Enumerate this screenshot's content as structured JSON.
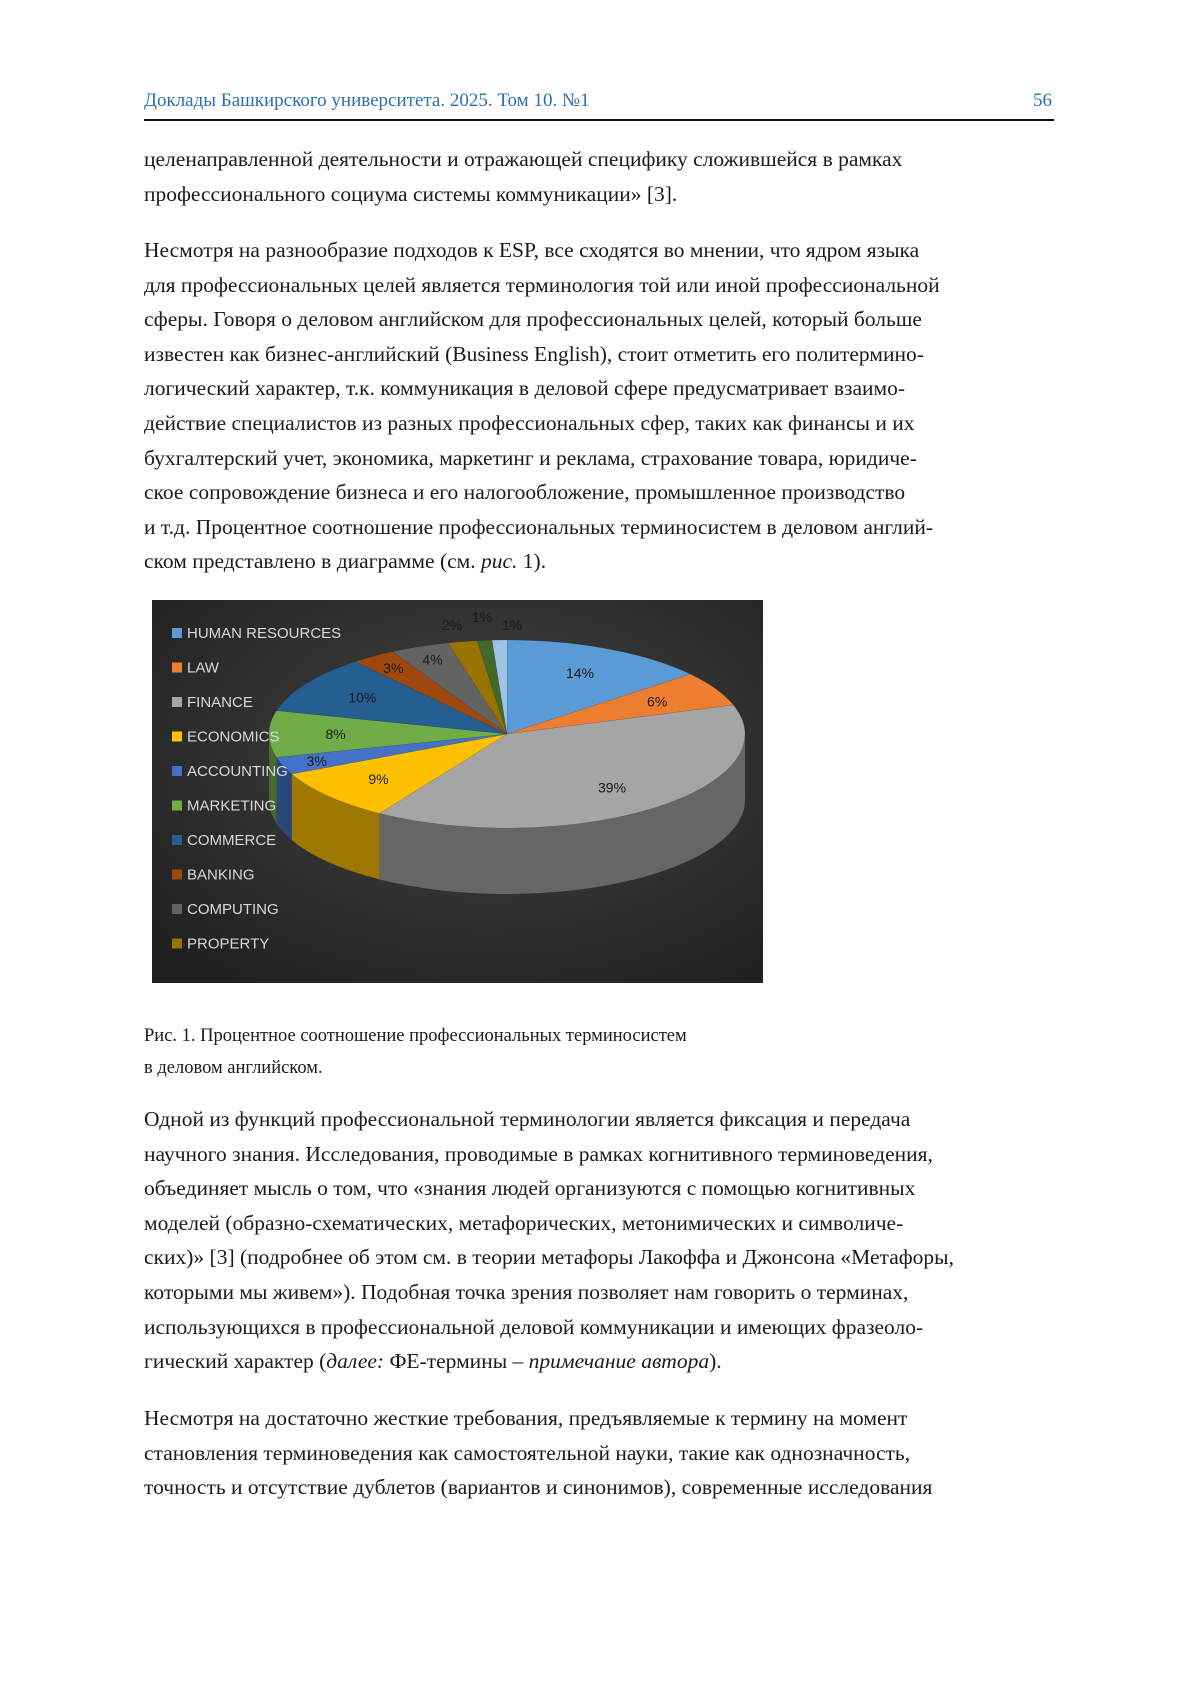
{
  "header": {
    "journal": "Доклады Башкирского университета. 2025. Том 10. №1",
    "page_number": "56"
  },
  "paragraphs": [
    {
      "lines": [
        [
          {
            "t": "целенаправленной деятельности и отражающей специфику сложившейся в рамках"
          }
        ],
        [
          {
            "t": "профессионального социума системы коммуникации» [3]."
          }
        ]
      ]
    },
    {
      "lines": [
        [
          {
            "t": "Несмотря на разнообразие подходов к ESP, все сходятся во мнении, что ядром языка"
          }
        ],
        [
          {
            "t": "для профессиональных целей является терминология той или иной профессиональной"
          }
        ],
        [
          {
            "t": "сферы. Говоря о деловом английском для профессиональных целей, который больше"
          }
        ],
        [
          {
            "t": "известен как бизнес-английский (Business English), стоит отметить его политермино-"
          }
        ],
        [
          {
            "t": "логический характер, т.к. коммуникация в деловой сфере предусматривает взаимо-"
          }
        ],
        [
          {
            "t": "действие специалистов из разных профессиональных сфер, таких как финансы и их"
          }
        ],
        [
          {
            "t": "бухгалтерский учет, экономика, маркетинг и реклама, страхование товара, юридиче-"
          }
        ],
        [
          {
            "t": "ское сопровождение бизнеса и его налогообложение, промышленное производство"
          }
        ],
        [
          {
            "t": "и т.д. Процентное соотношение профессиональных терминосистем в деловом англий-"
          }
        ],
        [
          {
            "t": "ском представлено в диаграмме (см. "
          },
          {
            "t": "рис.",
            "i": true
          },
          {
            "t": " 1)."
          }
        ]
      ]
    },
    {
      "lines": [
        [
          {
            "t": "Одной из функций профессиональной терминологии является фиксация и передача"
          }
        ],
        [
          {
            "t": "научного знания. Исследования, проводимые в рамках когнитивного терминоведения,"
          }
        ],
        [
          {
            "t": "объединяет мысль о том, что «знания людей организуются с помощью когнитивных"
          }
        ],
        [
          {
            "t": "моделей (образно-схематических, метафорических, метонимических и символиче-"
          }
        ],
        [
          {
            "t": "ских)» [3] (подробнее об этом см. в теории метафоры Лакоффа и Джонсона «Метафоры,"
          }
        ],
        [
          {
            "t": "которыми мы живем»). Подобная точка зрения позволяет нам говорить о терминах,"
          }
        ],
        [
          {
            "t": "использующихся в профессиональной деловой коммуникации и имеющих фразеоло-"
          }
        ],
        [
          {
            "t": "гический характер ("
          },
          {
            "t": "далее:",
            "i": true
          },
          {
            "t": " ФЕ-термины – "
          },
          {
            "t": "примечание автора",
            "i": true
          },
          {
            "t": ")."
          }
        ]
      ]
    },
    {
      "lines": [
        [
          {
            "t": "Несмотря на достаточно жесткие требования, предъявляемые к термину на момент"
          }
        ],
        [
          {
            "t": "становления терминоведения как самостоятельной науки, такие как однозначность,"
          }
        ],
        [
          {
            "t": "точность и отсутствие дублетов (вариантов и синонимов), современные исследования"
          }
        ]
      ]
    }
  ],
  "caption": {
    "line1": "Рис. 1. Процентное соотношение профессиональных терминосистем",
    "line2": "в деловом английском."
  },
  "chart_data": {
    "type": "pie",
    "style": "3d",
    "title": "",
    "legend_placement": "left",
    "background": "#2e2e2e",
    "slices": [
      {
        "name": "HUMAN RESOURCES",
        "value": 14,
        "label": "14%",
        "color": "#5b9bd5"
      },
      {
        "name": "LAW",
        "value": 6,
        "label": "6%",
        "color": "#ed7d31"
      },
      {
        "name": "FINANCE",
        "value": 39,
        "label": "39%",
        "color": "#a5a5a5"
      },
      {
        "name": "ECONOMICS",
        "value": 9,
        "label": "9%",
        "color": "#ffc000"
      },
      {
        "name": "ACCOUNTING",
        "value": 3,
        "label": "3%",
        "color": "#4472c4"
      },
      {
        "name": "MARKETING",
        "value": 8,
        "label": "8%",
        "color": "#70ad47"
      },
      {
        "name": "COMMERCE",
        "value": 10,
        "label": "10%",
        "color": "#255e91"
      },
      {
        "name": "BANKING",
        "value": 3,
        "label": "3%",
        "color": "#9e480e"
      },
      {
        "name": "COMPUTING",
        "value": 4,
        "label": "4%",
        "color": "#636363"
      },
      {
        "name": "PROPERTY",
        "value": 2,
        "label": "2%",
        "color": "#997300"
      },
      {
        "name": "",
        "value": 1,
        "label": "1%",
        "color": "#43682b"
      },
      {
        "name": "",
        "value": 1,
        "label": "1%",
        "color": "#9dc3e6"
      }
    ]
  }
}
